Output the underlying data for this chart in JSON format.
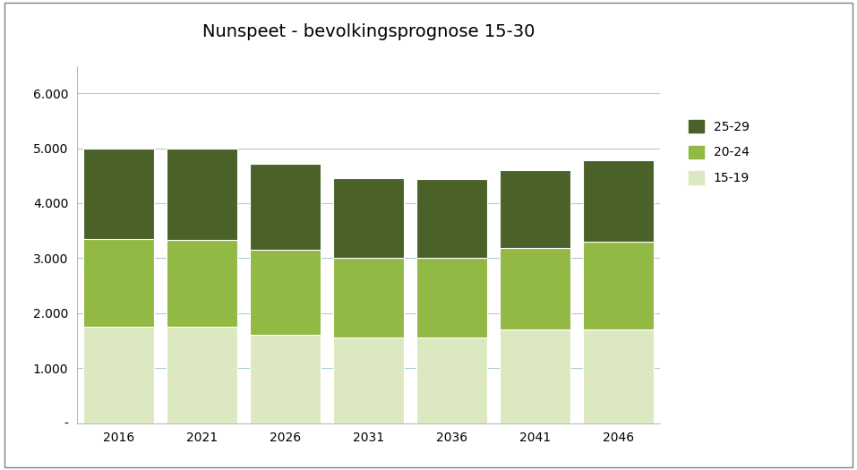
{
  "title": "Nunspeet - bevolkingsprognose 15-30",
  "categories": [
    "2016",
    "2021",
    "2026",
    "2031",
    "2036",
    "2041",
    "2046"
  ],
  "series": {
    "15-19": [
      1750,
      1750,
      1600,
      1550,
      1550,
      1700,
      1700
    ],
    "20-24": [
      1600,
      1580,
      1560,
      1450,
      1450,
      1480,
      1600
    ],
    "25-29": [
      1650,
      1660,
      1550,
      1450,
      1440,
      1420,
      1475
    ]
  },
  "colors": {
    "15-19": "#dce9c0",
    "20-24": "#92b944",
    "25-29": "#4a6228"
  },
  "ylim": [
    0,
    6500
  ],
  "yticks": [
    0,
    1000,
    2000,
    3000,
    4000,
    5000,
    6000
  ],
  "ytick_labels": [
    "-",
    "1.000",
    "2.000",
    "3.000",
    "4.000",
    "5.000",
    "6.000"
  ],
  "bar_width": 0.85,
  "layer_order": [
    "15-19",
    "20-24",
    "25-29"
  ],
  "legend_order": [
    "25-29",
    "20-24",
    "15-19"
  ],
  "background_color": "#ffffff",
  "grid_color": "#aaccd8",
  "title_fontsize": 14,
  "tick_fontsize": 10,
  "legend_fontsize": 10,
  "border_color": "#808080"
}
